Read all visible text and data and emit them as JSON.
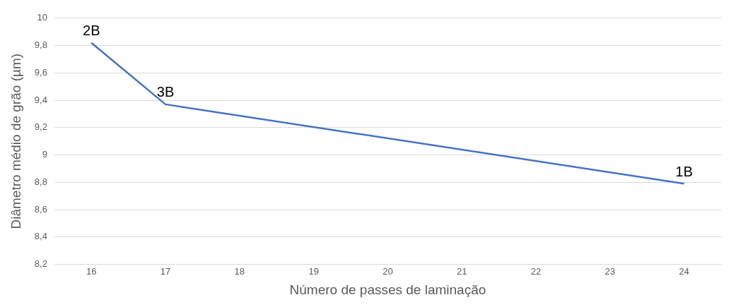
{
  "chart_data": {
    "type": "line",
    "xlabel": "Número de passes de laminação",
    "ylabel": "Diâmetro médio de grão (µm)",
    "x": [
      16,
      17,
      24
    ],
    "series": [
      {
        "color": "#4472c4",
        "values": [
          9.82,
          9.37,
          8.79
        ]
      }
    ],
    "xlim": [
      15.5,
      24.5
    ],
    "xticks": [
      16,
      17,
      18,
      19,
      20,
      21,
      22,
      23,
      24
    ],
    "ylim": [
      8.2,
      10
    ],
    "yticks": [
      {
        "value": 8.2,
        "label": "8,2"
      },
      {
        "value": 8.4,
        "label": "8,4"
      },
      {
        "value": 8.6,
        "label": "8,6"
      },
      {
        "value": 8.8,
        "label": "8,8"
      },
      9,
      {
        "value": 9.2,
        "label": "9,2"
      },
      {
        "value": 9.4,
        "label": "9,4"
      },
      {
        "value": 9.6,
        "label": "9,6"
      },
      {
        "value": 9.8,
        "label": "9,8"
      },
      10
    ],
    "annotations": [
      {
        "text": "2B",
        "x": 16,
        "y": 9.82
      },
      {
        "text": "3B",
        "x": 17,
        "y": 9.37
      },
      {
        "text": "1B",
        "x": 24,
        "y": 8.79
      }
    ],
    "grid": "y",
    "marker": "none",
    "line_style": "solid",
    "legend": false
  }
}
